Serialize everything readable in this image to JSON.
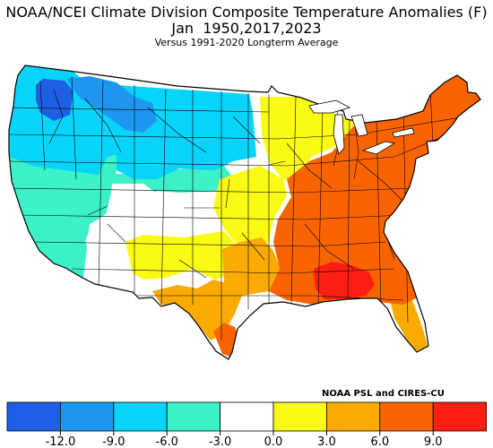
{
  "title": {
    "line1": "NOAA/NCEI Climate Division Composite Temperature Anomalies (F)",
    "line2": "Jan  1950,2017,2023",
    "line3": "Versus 1991-2020 Longterm Average"
  },
  "credit": "NOAA PSL and CIRES-CU",
  "colors": {
    "b1": "#1e5fe6",
    "b2": "#1e96f0",
    "b3": "#08d4fa",
    "b4": "#3cf0c8",
    "b5": "#ffffff",
    "b6": "#fafa14",
    "b7": "#faaa00",
    "b8": "#fa6400",
    "b9": "#ff1e14"
  },
  "legend": {
    "colors": [
      "#1e5fe6",
      "#1e96f0",
      "#08d4fa",
      "#3cf0c8",
      "#ffffff",
      "#fafa14",
      "#faaa00",
      "#fa6400",
      "#ff1e14"
    ],
    "ticks": [
      "-12.0",
      "-9.0",
      "-6.0",
      "-3.0",
      "0.0",
      "3.0",
      "6.0",
      "9.0"
    ]
  },
  "regions": [
    {
      "id": "washington-west",
      "level": "b1"
    },
    {
      "id": "pacific-northwest",
      "level": "b3"
    },
    {
      "id": "northern-rockies",
      "level": "b2"
    },
    {
      "id": "northern-plains",
      "level": "b3"
    },
    {
      "id": "west-coast",
      "level": "b4"
    },
    {
      "id": "central-plains",
      "level": "b4"
    },
    {
      "id": "great-basin",
      "level": "b5"
    },
    {
      "id": "upper-midwest",
      "level": "b5"
    },
    {
      "id": "southwest",
      "level": "b6"
    },
    {
      "id": "central",
      "level": "b6"
    },
    {
      "id": "great-lakes",
      "level": "b6"
    },
    {
      "id": "new-mexico-east",
      "level": "b7"
    },
    {
      "id": "texas",
      "level": "b7"
    },
    {
      "id": "florida",
      "level": "b7"
    },
    {
      "id": "gulf-coast-texas",
      "level": "b8"
    },
    {
      "id": "east",
      "level": "b8"
    },
    {
      "id": "deep-south",
      "level": "b9"
    }
  ]
}
